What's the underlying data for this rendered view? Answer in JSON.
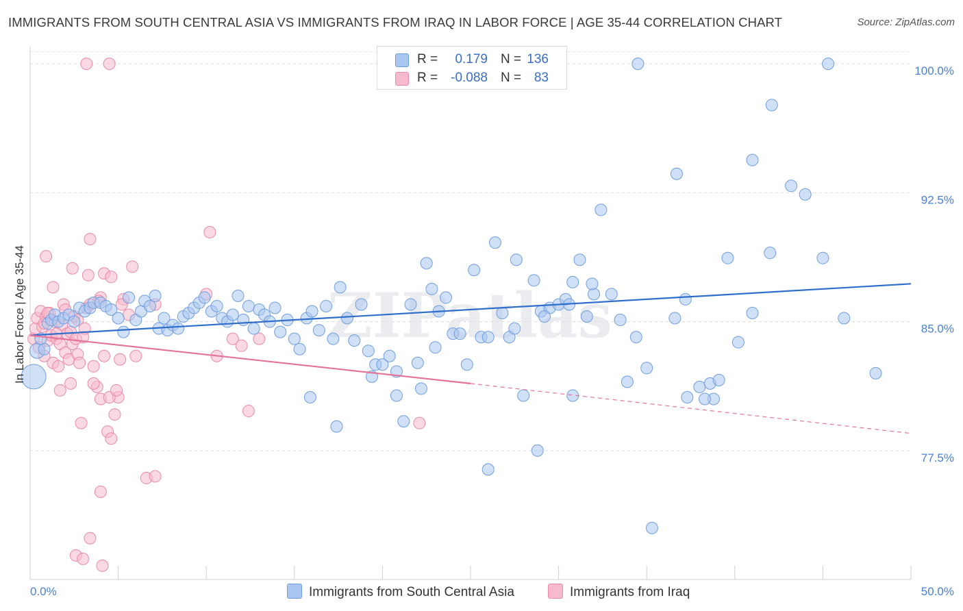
{
  "header": {
    "title": "IMMIGRANTS FROM SOUTH CENTRAL ASIA VS IMMIGRANTS FROM IRAQ IN LABOR FORCE | AGE 35-44 CORRELATION CHART",
    "source": "Source: ZipAtlas.com"
  },
  "watermark": "ZIPatlas",
  "legend": {
    "rows": [
      {
        "r_label": "R =",
        "r_value": "0.179",
        "n_label": "N =",
        "n_value": "136",
        "color": "#a9c6f0",
        "border": "#6f9ee0"
      },
      {
        "r_label": "R =",
        "r_value": "-0.088",
        "n_label": "N =",
        "n_value": "83",
        "color": "#f7b9cc",
        "border": "#ea89a8"
      }
    ]
  },
  "bottom_legend": {
    "items": [
      {
        "label": "Immigrants from South Central Asia",
        "color": "#a9c6f0",
        "border": "#6f9ee0"
      },
      {
        "label": "Immigrants from Iraq",
        "color": "#f7b9cc",
        "border": "#ea89a8"
      }
    ]
  },
  "chart_data": {
    "type": "scatter",
    "title": "IMMIGRANTS FROM SOUTH CENTRAL ASIA VS IMMIGRANTS FROM IRAQ IN LABOR FORCE | AGE 35-44 CORRELATION CHART",
    "xlabel": "",
    "ylabel": "In Labor Force | Age 35-44",
    "xlim": [
      0,
      50
    ],
    "ylim": [
      70.0,
      101.0
    ],
    "x_ticks": [
      "0.0%",
      "50.0%"
    ],
    "y_ticks": [
      {
        "value": 100.0,
        "label": "100.0%"
      },
      {
        "value": 92.5,
        "label": "92.5%"
      },
      {
        "value": 85.0,
        "label": "85.0%"
      },
      {
        "value": 77.5,
        "label": "77.5%"
      }
    ],
    "grid": true,
    "legend_position": "top-center",
    "series": [
      {
        "name": "Immigrants from South Central Asia",
        "color": "#6f9ee0",
        "fill": "#a9c6f0",
        "trend": {
          "x": [
            0,
            50
          ],
          "y": [
            84.2,
            87.2
          ],
          "style": "solid",
          "color": "#2f6fcb"
        },
        "points": [
          [
            0.2,
            81.8,
            3
          ],
          [
            0.4,
            83.3,
            2
          ],
          [
            0.6,
            84.0,
            1
          ],
          [
            0.8,
            83.4,
            1
          ],
          [
            1.0,
            84.9,
            1
          ],
          [
            1.2,
            85.1,
            1
          ],
          [
            1.4,
            85.4,
            1
          ],
          [
            1.6,
            85.0,
            1
          ],
          [
            1.9,
            85.2,
            1
          ],
          [
            2.2,
            85.4,
            1
          ],
          [
            2.5,
            85.0,
            1
          ],
          [
            2.8,
            85.8,
            1
          ],
          [
            3.1,
            85.6,
            1
          ],
          [
            3.4,
            85.8,
            1
          ],
          [
            3.6,
            86.1,
            1
          ],
          [
            4.0,
            86.1,
            1
          ],
          [
            4.3,
            85.9,
            1
          ],
          [
            4.6,
            85.7,
            1
          ],
          [
            5.0,
            85.2,
            1
          ],
          [
            5.3,
            84.4,
            1
          ],
          [
            5.6,
            86.4,
            1
          ],
          [
            6.0,
            85.1,
            1
          ],
          [
            6.3,
            85.6,
            1
          ],
          [
            6.5,
            86.2,
            1
          ],
          [
            6.8,
            85.9,
            1
          ],
          [
            7.1,
            86.5,
            1
          ],
          [
            7.3,
            84.6,
            1
          ],
          [
            7.6,
            85.2,
            1
          ],
          [
            7.8,
            84.5,
            1
          ],
          [
            8.1,
            84.8,
            1
          ],
          [
            8.4,
            84.6,
            1
          ],
          [
            8.7,
            85.3,
            1
          ],
          [
            9.0,
            85.5,
            1
          ],
          [
            9.3,
            85.8,
            1
          ],
          [
            9.6,
            86.1,
            1
          ],
          [
            9.9,
            86.4,
            1
          ],
          [
            10.3,
            85.6,
            1
          ],
          [
            10.6,
            85.9,
            1
          ],
          [
            10.9,
            85.2,
            1
          ],
          [
            11.2,
            85.0,
            1
          ],
          [
            11.5,
            85.4,
            1
          ],
          [
            11.8,
            86.5,
            1
          ],
          [
            12.1,
            85.1,
            1
          ],
          [
            12.4,
            85.9,
            1
          ],
          [
            12.7,
            84.6,
            1
          ],
          [
            13.0,
            85.7,
            1
          ],
          [
            13.3,
            85.4,
            1
          ],
          [
            13.6,
            85.0,
            1
          ],
          [
            13.9,
            85.8,
            1
          ],
          [
            14.2,
            84.4,
            1
          ],
          [
            14.6,
            85.1,
            1
          ],
          [
            15.0,
            84.0,
            1
          ],
          [
            15.3,
            83.4,
            1
          ],
          [
            15.7,
            85.2,
            1
          ],
          [
            16.0,
            85.6,
            1
          ],
          [
            16.4,
            84.5,
            1
          ],
          [
            16.8,
            85.9,
            1
          ],
          [
            17.2,
            84.0,
            1
          ],
          [
            17.6,
            87.0,
            1
          ],
          [
            18.0,
            85.2,
            1
          ],
          [
            18.4,
            83.9,
            1
          ],
          [
            18.8,
            86.0,
            1
          ],
          [
            19.2,
            83.3,
            1
          ],
          [
            19.6,
            82.5,
            1
          ],
          [
            20.0,
            82.5,
            1
          ],
          [
            20.4,
            83.0,
            1
          ],
          [
            20.8,
            80.7,
            1
          ],
          [
            21.2,
            79.2,
            1
          ],
          [
            21.6,
            86.0,
            1
          ],
          [
            22.0,
            82.6,
            1
          ],
          [
            22.5,
            88.4,
            1
          ],
          [
            22.8,
            86.9,
            1
          ],
          [
            23.2,
            85.6,
            1
          ],
          [
            23.6,
            86.4,
            1
          ],
          [
            24.0,
            84.3,
            1
          ],
          [
            24.4,
            84.3,
            1
          ],
          [
            24.8,
            82.5,
            1
          ],
          [
            25.2,
            88.0,
            1
          ],
          [
            25.6,
            84.1,
            1
          ],
          [
            26.0,
            84.1,
            1
          ],
          [
            26.4,
            89.6,
            1
          ],
          [
            26.8,
            85.5,
            1
          ],
          [
            27.2,
            84.1,
            1
          ],
          [
            27.6,
            88.6,
            1
          ],
          [
            28.0,
            80.7,
            1
          ],
          [
            28.6,
            87.4,
            1
          ],
          [
            29.0,
            85.6,
            1
          ],
          [
            29.5,
            85.8,
            1
          ],
          [
            30.0,
            86.0,
            1
          ],
          [
            30.4,
            86.3,
            1
          ],
          [
            30.8,
            87.3,
            1
          ],
          [
            31.2,
            88.6,
            1
          ],
          [
            31.6,
            85.3,
            1
          ],
          [
            32.0,
            86.6,
            1
          ],
          [
            32.4,
            91.5,
            1
          ],
          [
            33.0,
            86.6,
            1
          ],
          [
            31.9,
            87.2,
            1
          ],
          [
            34.4,
            84.1,
            1
          ],
          [
            35.0,
            82.3,
            1
          ],
          [
            36.6,
            85.2,
            1
          ],
          [
            37.2,
            86.3,
            1
          ],
          [
            38.0,
            81.2,
            1
          ],
          [
            38.8,
            80.5,
            1
          ],
          [
            39.6,
            88.7,
            1
          ],
          [
            40.2,
            83.8,
            1
          ],
          [
            41.0,
            85.5,
            1
          ],
          [
            42.0,
            89.0,
            1
          ],
          [
            43.2,
            92.9,
            1
          ],
          [
            44.0,
            92.4,
            1
          ],
          [
            45.0,
            88.7,
            1
          ],
          [
            46.2,
            85.2,
            1
          ],
          [
            48.0,
            82.0,
            1
          ],
          [
            34.5,
            100.0,
            1
          ],
          [
            45.3,
            100.0,
            1
          ],
          [
            42.1,
            97.6,
            1
          ],
          [
            36.7,
            93.6,
            1
          ],
          [
            41.0,
            94.4,
            1
          ],
          [
            28.8,
            77.5,
            1
          ],
          [
            26.0,
            76.4,
            1
          ],
          [
            17.4,
            78.9,
            1
          ],
          [
            35.3,
            73.0,
            1
          ],
          [
            29.2,
            85.3,
            1
          ],
          [
            30.6,
            86.0,
            1
          ],
          [
            33.5,
            85.1,
            1
          ],
          [
            37.3,
            80.6,
            1
          ],
          [
            38.6,
            81.4,
            1
          ],
          [
            39.1,
            81.6,
            1
          ],
          [
            38.3,
            80.5,
            1
          ],
          [
            15.9,
            80.6,
            1
          ],
          [
            19.4,
            81.8,
            1
          ],
          [
            20.8,
            82.1,
            1
          ],
          [
            22.2,
            81.1,
            1
          ],
          [
            23.0,
            83.5,
            1
          ],
          [
            27.5,
            84.6,
            1
          ],
          [
            30.8,
            80.7,
            1
          ],
          [
            33.9,
            81.5,
            1
          ]
        ]
      },
      {
        "name": "Immigrants from Iraq",
        "color": "#ea89a8",
        "fill": "#f7b9cc",
        "trend": {
          "x": [
            0,
            25
          ],
          "y": [
            84.2,
            81.4
          ],
          "style": "solid",
          "color": "#e4739a",
          "extended_to": [
            50,
            78.5
          ]
        },
        "points": [
          [
            0.2,
            84.0,
            1
          ],
          [
            0.3,
            84.6,
            1
          ],
          [
            0.4,
            85.2,
            1
          ],
          [
            0.5,
            83.5,
            1
          ],
          [
            0.6,
            85.6,
            1
          ],
          [
            0.7,
            84.7,
            1
          ],
          [
            0.8,
            84.9,
            1
          ],
          [
            0.9,
            85.3,
            1
          ],
          [
            1.0,
            83.9,
            1
          ],
          [
            1.1,
            85.5,
            1
          ],
          [
            1.2,
            84.2,
            1
          ],
          [
            1.3,
            82.6,
            1
          ],
          [
            1.4,
            85.0,
            1
          ],
          [
            1.5,
            84.0,
            1
          ],
          [
            1.6,
            82.4,
            1
          ],
          [
            1.7,
            83.7,
            1
          ],
          [
            1.8,
            84.8,
            1
          ],
          [
            1.9,
            86.0,
            1
          ],
          [
            2.0,
            83.2,
            1
          ],
          [
            2.1,
            84.3,
            1
          ],
          [
            2.2,
            82.8,
            1
          ],
          [
            2.3,
            84.4,
            1
          ],
          [
            2.4,
            83.7,
            1
          ],
          [
            2.5,
            85.3,
            1
          ],
          [
            2.6,
            84.0,
            1
          ],
          [
            2.7,
            83.1,
            1
          ],
          [
            2.8,
            82.6,
            1
          ],
          [
            3.0,
            84.1,
            1
          ],
          [
            3.2,
            85.8,
            1
          ],
          [
            3.4,
            86.0,
            1
          ],
          [
            3.6,
            82.4,
            1
          ],
          [
            3.8,
            81.2,
            1
          ],
          [
            4.0,
            80.5,
            1
          ],
          [
            4.2,
            83.0,
            1
          ],
          [
            4.4,
            78.6,
            1
          ],
          [
            4.6,
            78.2,
            1
          ],
          [
            4.8,
            79.6,
            1
          ],
          [
            5.0,
            80.6,
            1
          ],
          [
            5.3,
            86.3,
            1
          ],
          [
            5.6,
            85.4,
            1
          ],
          [
            6.0,
            83.0,
            1
          ],
          [
            0.9,
            88.8,
            1
          ],
          [
            1.3,
            87.0,
            1
          ],
          [
            2.4,
            88.1,
            1
          ],
          [
            3.3,
            87.7,
            1
          ],
          [
            3.4,
            89.8,
            1
          ],
          [
            4.0,
            86.4,
            1
          ],
          [
            4.2,
            87.8,
            1
          ],
          [
            4.6,
            87.6,
            1
          ],
          [
            5.2,
            86.0,
            1
          ],
          [
            5.8,
            88.2,
            1
          ],
          [
            7.1,
            86.0,
            1
          ],
          [
            10.0,
            86.6,
            1
          ],
          [
            10.2,
            90.2,
            1
          ],
          [
            10.6,
            83.0,
            1
          ],
          [
            11.5,
            84.0,
            1
          ],
          [
            12.0,
            83.6,
            1
          ],
          [
            12.4,
            79.8,
            1
          ],
          [
            13.0,
            84.0,
            1
          ],
          [
            3.2,
            100.0,
            1
          ],
          [
            4.5,
            100.0,
            1
          ],
          [
            2.6,
            71.4,
            1
          ],
          [
            3.0,
            71.2,
            1
          ],
          [
            3.4,
            72.4,
            1
          ],
          [
            4.1,
            70.8,
            1
          ],
          [
            4.0,
            75.1,
            1
          ],
          [
            6.6,
            75.9,
            1
          ],
          [
            7.1,
            76.0,
            1
          ],
          [
            22.1,
            79.1,
            1
          ],
          [
            1.7,
            81.0,
            1
          ],
          [
            2.3,
            81.4,
            1
          ],
          [
            3.6,
            81.4,
            1
          ],
          [
            4.5,
            80.6,
            1
          ],
          [
            2.9,
            79.1,
            1
          ],
          [
            1.0,
            85.5,
            1
          ],
          [
            0.8,
            83.0,
            1
          ],
          [
            2.7,
            85.1,
            1
          ],
          [
            3.1,
            84.6,
            1
          ],
          [
            1.5,
            84.3,
            1
          ],
          [
            4.9,
            81.0,
            1
          ],
          [
            5.1,
            82.8,
            1
          ],
          [
            3.9,
            86.2,
            1
          ],
          [
            2.0,
            85.7,
            1
          ]
        ]
      }
    ]
  }
}
